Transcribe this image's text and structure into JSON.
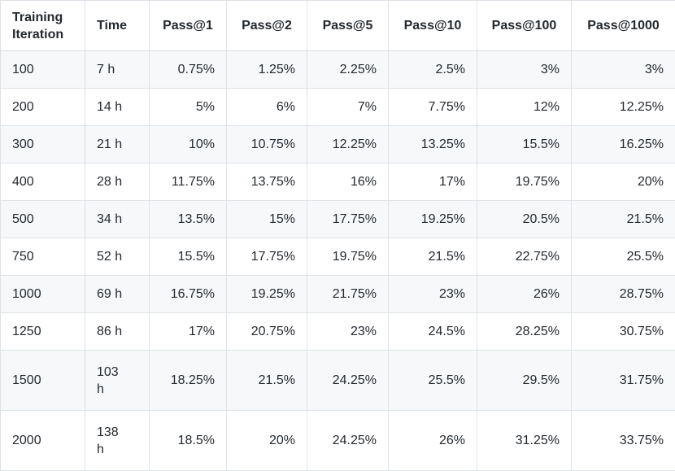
{
  "table": {
    "columns": [
      {
        "id": "iteration",
        "label": "Training Iteration",
        "align": "left"
      },
      {
        "id": "time",
        "label": "Time",
        "align": "left"
      },
      {
        "id": "pass1",
        "label": "Pass@1",
        "align": "right"
      },
      {
        "id": "pass2",
        "label": "Pass@2",
        "align": "right"
      },
      {
        "id": "pass5",
        "label": "Pass@5",
        "align": "right"
      },
      {
        "id": "pass10",
        "label": "Pass@10",
        "align": "right"
      },
      {
        "id": "pass100",
        "label": "Pass@100",
        "align": "right"
      },
      {
        "id": "pass1000",
        "label": "Pass@1000",
        "align": "right"
      }
    ],
    "rows": [
      [
        "100",
        "7 h",
        "0.75%",
        "1.25%",
        "2.25%",
        "2.5%",
        "3%",
        "3%"
      ],
      [
        "200",
        "14 h",
        "5%",
        "6%",
        "7%",
        "7.75%",
        "12%",
        "12.25%"
      ],
      [
        "300",
        "21 h",
        "10%",
        "10.75%",
        "12.25%",
        "13.25%",
        "15.5%",
        "16.25%"
      ],
      [
        "400",
        "28 h",
        "11.75%",
        "13.75%",
        "16%",
        "17%",
        "19.75%",
        "20%"
      ],
      [
        "500",
        "34 h",
        "13.5%",
        "15%",
        "17.75%",
        "19.25%",
        "20.5%",
        "21.5%"
      ],
      [
        "750",
        "52 h",
        "15.5%",
        "17.75%",
        "19.75%",
        "21.5%",
        "22.75%",
        "25.5%"
      ],
      [
        "1000",
        "69 h",
        "16.75%",
        "19.25%",
        "21.75%",
        "23%",
        "26%",
        "28.75%"
      ],
      [
        "1250",
        "86 h",
        "17%",
        "20.75%",
        "23%",
        "24.5%",
        "28.25%",
        "30.75%"
      ],
      [
        "1500",
        "103 h",
        "18.25%",
        "21.5%",
        "24.25%",
        "25.5%",
        "29.5%",
        "31.75%"
      ],
      [
        "2000",
        "138 h",
        "18.5%",
        "20%",
        "24.25%",
        "26%",
        "31.25%",
        "33.75%"
      ]
    ]
  },
  "colors": {
    "text": "#24292f",
    "border": "#dee2e6",
    "stripe_row_background": "#f6f8fa",
    "background": "#ffffff"
  }
}
